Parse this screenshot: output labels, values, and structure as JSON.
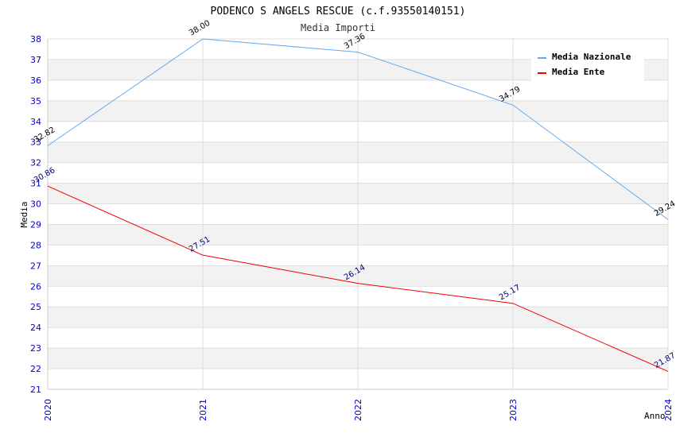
{
  "chart_data": {
    "type": "line",
    "title": "PODENCO S ANGELS RESCUE (c.f.93550140151)",
    "subtitle": "Media Importi",
    "xlabel": "Anno",
    "ylabel": "Media",
    "categories": [
      "2020",
      "2021",
      "2022",
      "2023",
      "2024"
    ],
    "ylim": [
      21,
      38
    ],
    "yticks": [
      21,
      22,
      23,
      24,
      25,
      26,
      27,
      28,
      29,
      30,
      31,
      32,
      33,
      34,
      35,
      36,
      37,
      38
    ],
    "grid": true,
    "legend_position": "top-right",
    "series": [
      {
        "name": "Media Nazionale",
        "values": [
          32.82,
          38.0,
          37.36,
          34.79,
          29.24
        ],
        "labels": [
          "32.82",
          "38.00",
          "37.36",
          "34.79",
          "29.24"
        ],
        "color": "#66aaee",
        "label_color": "#000000"
      },
      {
        "name": "Media Ente",
        "values": [
          30.86,
          27.51,
          26.14,
          25.17,
          21.87
        ],
        "labels": [
          "30.86",
          "27.51",
          "26.14",
          "25.17",
          "21.87"
        ],
        "color": "#ee0000",
        "label_color": "#000080"
      }
    ]
  }
}
